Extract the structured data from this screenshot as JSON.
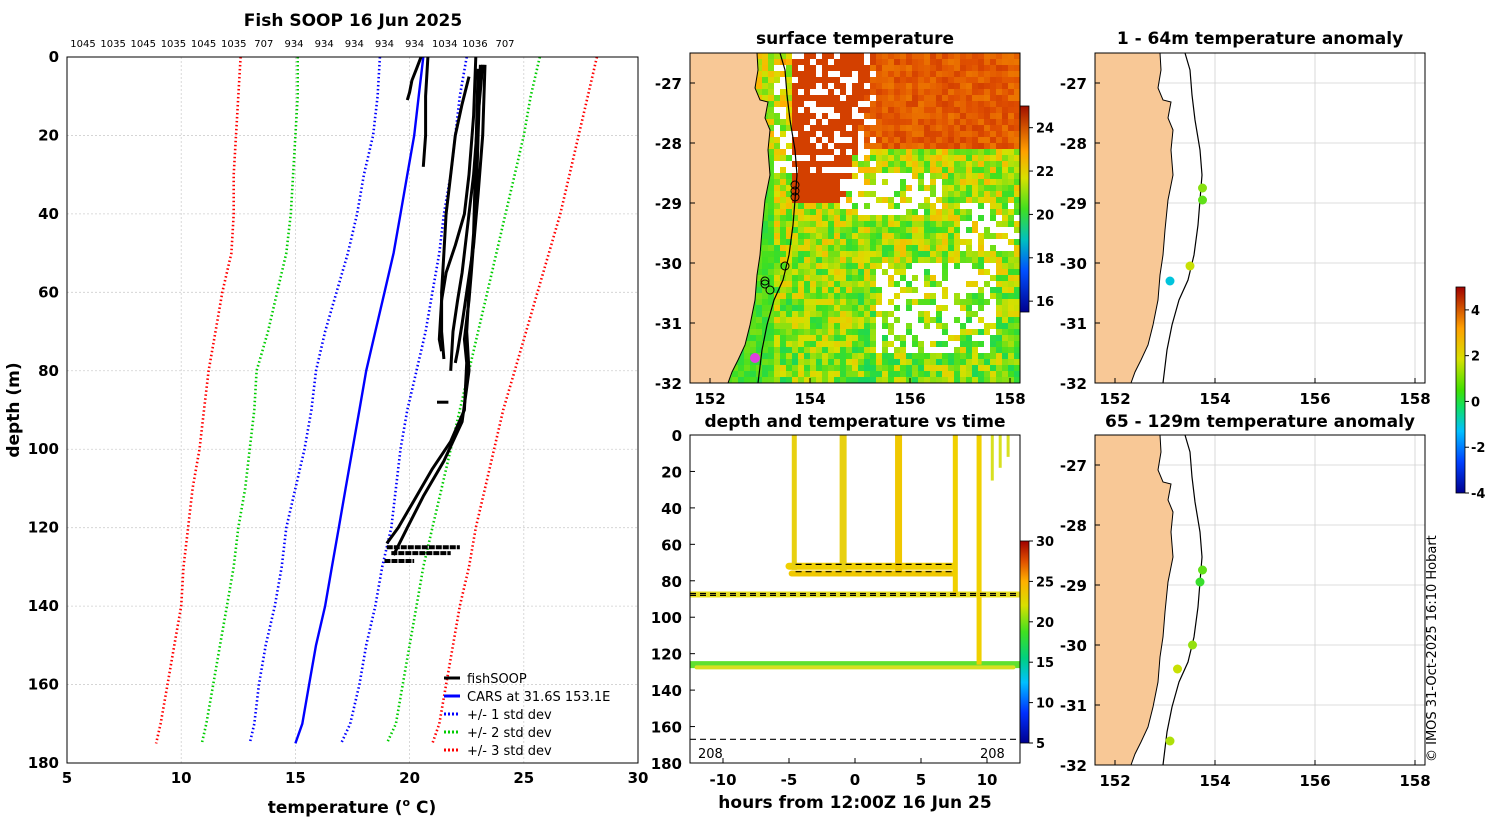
{
  "chart_data": [
    {
      "id": "profile",
      "type": "line",
      "title": "Fish SOOP 16 Jun 2025",
      "top_labels": [
        "1045",
        "1035",
        "1045",
        "1035",
        "1045",
        "1035",
        "707",
        "934",
        "934",
        "934",
        "934",
        "934",
        "1034",
        "1036",
        "707"
      ],
      "xlabel": "temperature (",
      "xlabel_sup": "o",
      "xlabel_end": " C)",
      "ylabel": "depth (m)",
      "xlim": [
        5,
        30
      ],
      "ylim": [
        180,
        0
      ],
      "xticks": [
        "5",
        "10",
        "15",
        "20",
        "25",
        "30"
      ],
      "yticks": [
        "0",
        "20",
        "40",
        "60",
        "80",
        "100",
        "120",
        "140",
        "160",
        "180"
      ],
      "depth": [
        0,
        10,
        20,
        30,
        40,
        50,
        60,
        70,
        80,
        90,
        100,
        110,
        120,
        130,
        140,
        150,
        160,
        170,
        175
      ],
      "series": [
        {
          "name": "CARS at 31.6S 153.1E",
          "style": "solid",
          "color": "#0000ff",
          "values": [
            20.6,
            20.4,
            20.2,
            19.9,
            19.6,
            19.3,
            18.9,
            18.5,
            18.1,
            17.8,
            17.5,
            17.2,
            16.9,
            16.6,
            16.3,
            15.9,
            15.6,
            15.3,
            15.0
          ]
        },
        {
          "name": "+/- 1 std dev (upper)",
          "style": "dotted",
          "color": "#0000ff",
          "values": [
            22.5,
            22.2,
            22.0,
            21.8,
            21.5,
            21.3,
            21.0,
            20.7,
            20.3,
            19.9,
            19.6,
            19.4,
            19.2,
            18.8,
            18.5,
            18.1,
            17.8,
            17.4,
            17.0
          ]
        },
        {
          "name": "+/- 1 std dev (lower)",
          "style": "dotted",
          "color": "#0000ff",
          "values": [
            18.7,
            18.6,
            18.4,
            18.0,
            17.7,
            17.3,
            16.8,
            16.3,
            15.9,
            15.7,
            15.4,
            15.0,
            14.6,
            14.4,
            14.1,
            13.7,
            13.4,
            13.2,
            13.0
          ]
        },
        {
          "name": "+/- 2 std dev (upper)",
          "style": "dotted",
          "color": "#00cc00",
          "values": [
            25.7,
            25.3,
            25.0,
            24.6,
            24.2,
            23.8,
            23.4,
            23.0,
            22.6,
            22.2,
            21.8,
            21.4,
            21.0,
            20.6,
            20.3,
            20.0,
            19.7,
            19.4,
            19.0
          ]
        },
        {
          "name": "+/- 2 std dev (lower)",
          "style": "dotted",
          "color": "#00cc00",
          "values": [
            15.1,
            15.1,
            15.0,
            14.9,
            14.8,
            14.6,
            14.2,
            13.8,
            13.3,
            13.2,
            13.0,
            12.8,
            12.5,
            12.3,
            12.0,
            11.7,
            11.4,
            11.1,
            10.9
          ]
        },
        {
          "name": "+/- 3 std dev (upper)",
          "style": "dotted",
          "color": "#ff0000",
          "values": [
            28.2,
            27.8,
            27.4,
            27.0,
            26.6,
            26.1,
            25.6,
            25.1,
            24.6,
            24.1,
            23.7,
            23.3,
            22.9,
            22.6,
            22.2,
            21.9,
            21.6,
            21.3,
            21.0
          ]
        },
        {
          "name": "+/- 3 std dev (lower)",
          "style": "dotted",
          "color": "#ff0000",
          "values": [
            12.6,
            12.5,
            12.4,
            12.3,
            12.3,
            12.2,
            11.8,
            11.5,
            11.2,
            11.0,
            10.8,
            10.5,
            10.3,
            10.1,
            10.0,
            9.7,
            9.4,
            9.1,
            8.9
          ]
        }
      ],
      "fish_profiles": [
        [
          [
            20.5,
            0
          ],
          [
            20.3,
            3
          ],
          [
            20.1,
            6
          ],
          [
            20.0,
            9
          ],
          [
            19.9,
            11
          ]
        ],
        [
          [
            20.8,
            0
          ],
          [
            20.7,
            10
          ],
          [
            20.7,
            20
          ],
          [
            20.6,
            28
          ]
        ],
        [
          [
            22.6,
            5
          ],
          [
            22.3,
            12
          ],
          [
            22.0,
            20
          ],
          [
            21.8,
            30
          ],
          [
            21.6,
            40
          ],
          [
            21.5,
            50
          ],
          [
            21.4,
            60
          ],
          [
            21.4,
            70
          ],
          [
            21.5,
            77
          ]
        ],
        [
          [
            23.2,
            2
          ],
          [
            23.0,
            15
          ],
          [
            22.8,
            30
          ],
          [
            22.5,
            45
          ],
          [
            22.3,
            55
          ],
          [
            22.1,
            62
          ],
          [
            21.9,
            70
          ],
          [
            21.8,
            80
          ]
        ],
        [
          [
            23.3,
            2
          ],
          [
            23.2,
            20
          ],
          [
            23.0,
            35
          ],
          [
            22.8,
            48
          ],
          [
            22.5,
            60
          ],
          [
            22.3,
            68
          ],
          [
            22.1,
            75
          ],
          [
            22.0,
            78
          ]
        ],
        [
          [
            22.9,
            0
          ],
          [
            22.8,
            15
          ],
          [
            22.6,
            30
          ],
          [
            22.4,
            40
          ],
          [
            22.0,
            48
          ],
          [
            21.6,
            55
          ],
          [
            21.4,
            62
          ],
          [
            21.3,
            72
          ],
          [
            21.4,
            75
          ]
        ],
        [
          [
            23.1,
            2
          ],
          [
            23.0,
            20
          ],
          [
            22.9,
            40
          ],
          [
            22.7,
            55
          ],
          [
            22.6,
            62
          ],
          [
            22.4,
            72
          ],
          [
            22.5,
            78
          ],
          [
            22.4,
            90
          ],
          [
            21.8,
            98
          ],
          [
            21.0,
            105
          ],
          [
            20.2,
            113
          ],
          [
            19.5,
            120
          ],
          [
            19.0,
            124
          ]
        ],
        [
          [
            23.0,
            3
          ],
          [
            22.9,
            25
          ],
          [
            22.8,
            45
          ],
          [
            22.6,
            60
          ],
          [
            22.5,
            70
          ],
          [
            22.6,
            80
          ],
          [
            22.3,
            93
          ],
          [
            21.5,
            103
          ],
          [
            20.6,
            112
          ],
          [
            19.9,
            120
          ],
          [
            19.3,
            127
          ]
        ],
        [
          [
            21.2,
            88
          ],
          [
            21.7,
            88
          ]
        ]
      ],
      "legend": [
        {
          "label": "fishSOOP",
          "color": "#000000",
          "style": "solid"
        },
        {
          "label": "CARS at 31.6S 153.1E",
          "color": "#0000ff",
          "style": "solid"
        },
        {
          "label": "+/- 1 std dev",
          "color": "#0000ff",
          "style": "dotted"
        },
        {
          "label": "+/- 2 std dev",
          "color": "#00cc00",
          "style": "dotted"
        },
        {
          "label": "+/- 3 std dev",
          "color": "#ff0000",
          "style": "dotted"
        }
      ]
    },
    {
      "id": "sst_map",
      "type": "heatmap",
      "title": "surface temperature",
      "xlim": [
        151.6,
        158.2
      ],
      "ylim": [
        -32,
        -26.5
      ],
      "xticks": [
        "152",
        "154",
        "156",
        "158"
      ],
      "yticks": [
        "-27",
        "-28",
        "-29",
        "-30",
        "-31",
        "-32"
      ],
      "colorbar": {
        "min": 15.5,
        "max": 25,
        "ticks": [
          "16",
          "18",
          "20",
          "22",
          "24"
        ]
      },
      "stations": [
        {
          "lon": 153.7,
          "lat": -28.7
        },
        {
          "lon": 153.7,
          "lat": -28.8
        },
        {
          "lon": 153.7,
          "lat": -28.9
        },
        {
          "lon": 153.5,
          "lat": -30.05
        },
        {
          "lon": 153.1,
          "lat": -30.3
        },
        {
          "lon": 153.1,
          "lat": -30.35
        },
        {
          "lon": 153.2,
          "lat": -30.45
        }
      ]
    },
    {
      "id": "time_section",
      "type": "scatter",
      "title": "depth and temperature vs time",
      "xlabel": "hours from 12:00Z 16 Jun 25",
      "xlim": [
        -12.5,
        12.5
      ],
      "ylim": [
        180,
        0
      ],
      "xticks": [
        "-10",
        "-5",
        "0",
        "5",
        "10"
      ],
      "yticks": [
        "0",
        "20",
        "40",
        "60",
        "80",
        "100",
        "120",
        "140",
        "160",
        "180"
      ],
      "colorbar": {
        "min": 5,
        "max": 30,
        "ticks": [
          "5",
          "10",
          "15",
          "20",
          "25",
          "30"
        ]
      },
      "corner_labels": [
        "208",
        "208"
      ],
      "dashed_depths": [
        71,
        75,
        87,
        88,
        167
      ]
    },
    {
      "id": "anom_shallow",
      "type": "scatter",
      "title": "1 - 64m temperature anomaly",
      "xlim": [
        151.6,
        158.2
      ],
      "ylim": [
        -32,
        -26.5
      ],
      "xticks": [
        "152",
        "154",
        "156",
        "158"
      ],
      "yticks": [
        "-27",
        "-28",
        "-29",
        "-30",
        "-31",
        "-32"
      ],
      "points": [
        {
          "lon": 153.75,
          "lat": -28.75,
          "anom": 1.5
        },
        {
          "lon": 153.75,
          "lat": -28.95,
          "anom": 1.2
        },
        {
          "lon": 153.5,
          "lat": -30.05,
          "anom": 2.0
        },
        {
          "lon": 153.1,
          "lat": -30.3,
          "anom": -1.0
        }
      ]
    },
    {
      "id": "anom_deep",
      "type": "scatter",
      "title": "65 - 129m temperature anomaly",
      "xlim": [
        151.6,
        158.2
      ],
      "ylim": [
        -32,
        -26.5
      ],
      "xticks": [
        "152",
        "154",
        "156",
        "158"
      ],
      "yticks": [
        "-27",
        "-28",
        "-29",
        "-30",
        "-31",
        "-32"
      ],
      "points": [
        {
          "lon": 153.75,
          "lat": -28.75,
          "anom": 1.2
        },
        {
          "lon": 153.7,
          "lat": -28.95,
          "anom": 0.8
        },
        {
          "lon": 153.55,
          "lat": -30.0,
          "anom": 1.6
        },
        {
          "lon": 153.25,
          "lat": -30.4,
          "anom": 2.0
        },
        {
          "lon": 153.1,
          "lat": -31.6,
          "anom": 1.8
        }
      ],
      "colorbar": {
        "min": -4,
        "max": 5,
        "ticks": [
          "-4",
          "-2",
          "0",
          "2",
          "4"
        ]
      }
    }
  ],
  "footer": "© IMOS 31-Oct-2025 16:10 Hobart",
  "colors": {
    "land": "#f8c896",
    "axis": "#000000",
    "grid": "#cccccc"
  }
}
